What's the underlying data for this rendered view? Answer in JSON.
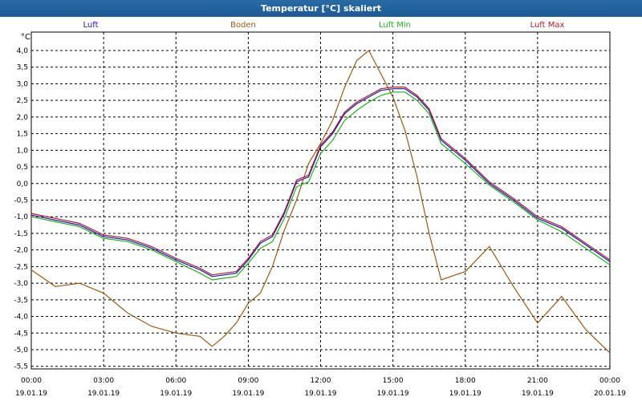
{
  "chart_data": {
    "type": "line",
    "title": "Temperatur [°C] skaliert",
    "ylabel": "°C",
    "ylim": [
      -5.5,
      4.3
    ],
    "yticks": [
      4.0,
      3.5,
      3.0,
      2.5,
      2.0,
      1.5,
      1.0,
      0.5,
      0.0,
      -0.5,
      -1.0,
      -1.5,
      -2.0,
      -2.5,
      -3.0,
      -3.5,
      -4.0,
      -4.5,
      -5.0,
      -5.5
    ],
    "ytick_labels": [
      "4,0",
      "3,5",
      "3,0",
      "2,5",
      "2,0",
      "1,5",
      "1,0",
      "0,5",
      "0,0",
      "-0,5",
      "-1,0",
      "-1,5",
      "-2,0",
      "-2,5",
      "-3,0",
      "-3,5",
      "-4,0",
      "-4,5",
      "-5,0",
      "-5,5"
    ],
    "xlim": [
      "2019-01-19T00:00",
      "2019-01-20T00:00"
    ],
    "xticks": [
      {
        "time": "00:00",
        "date": "19.01.19"
      },
      {
        "time": "03:00",
        "date": "19.01.19"
      },
      {
        "time": "06:00",
        "date": "19.01.19"
      },
      {
        "time": "09:00",
        "date": "19.01.19"
      },
      {
        "time": "12:00",
        "date": "19.01.19"
      },
      {
        "time": "15:00",
        "date": "19.01.19"
      },
      {
        "time": "18:00",
        "date": "19.01.19"
      },
      {
        "time": "21:00",
        "date": "19.01.19"
      },
      {
        "time": "00:00",
        "date": "20.01.19"
      }
    ],
    "grid": true,
    "legend_position": "top",
    "x_hours": [
      0,
      1,
      2,
      3,
      4,
      5,
      6,
      7,
      7.5,
      8,
      8.5,
      9,
      9.5,
      10,
      10.5,
      11,
      11.5,
      12,
      12.5,
      13,
      13.5,
      14,
      14.5,
      15,
      15.5,
      16,
      16.5,
      17,
      18,
      19,
      20,
      21,
      22,
      23,
      24
    ],
    "series": [
      {
        "name": "Luft",
        "color": "#1a1aaa",
        "values": [
          -0.95,
          -1.1,
          -1.25,
          -1.6,
          -1.7,
          -1.95,
          -2.3,
          -2.6,
          -2.8,
          -2.75,
          -2.7,
          -2.3,
          -1.8,
          -1.6,
          -0.9,
          0.05,
          0.2,
          1.1,
          1.5,
          2.1,
          2.4,
          2.6,
          2.8,
          2.85,
          2.85,
          2.6,
          2.2,
          1.3,
          0.7,
          0.0,
          -0.5,
          -1.05,
          -1.35,
          -1.85,
          -2.35
        ]
      },
      {
        "name": "Boden",
        "color": "#9c5a10",
        "values": [
          -2.6,
          -3.1,
          -3.0,
          -3.3,
          -3.9,
          -4.3,
          -4.5,
          -4.6,
          -4.9,
          -4.6,
          -4.2,
          -3.6,
          -3.3,
          -2.5,
          -1.4,
          -0.5,
          0.6,
          1.2,
          1.9,
          2.9,
          3.7,
          4.0,
          3.3,
          2.6,
          1.6,
          0.2,
          -1.5,
          -2.9,
          -2.65,
          -1.9,
          -3.1,
          -4.2,
          -3.4,
          -4.4,
          -5.1
        ]
      },
      {
        "name": "Luft Min",
        "color": "#1eb41e",
        "values": [
          -1.0,
          -1.15,
          -1.3,
          -1.65,
          -1.75,
          -2.0,
          -2.35,
          -2.7,
          -2.9,
          -2.85,
          -2.8,
          -2.4,
          -1.95,
          -1.75,
          -1.05,
          -0.1,
          0.05,
          0.9,
          1.3,
          1.9,
          2.2,
          2.45,
          2.65,
          2.75,
          2.75,
          2.5,
          2.1,
          1.2,
          0.6,
          -0.05,
          -0.55,
          -1.1,
          -1.45,
          -1.95,
          -2.45
        ]
      },
      {
        "name": "Luft Max",
        "color": "#b41a2a",
        "values": [
          -0.9,
          -1.05,
          -1.2,
          -1.55,
          -1.65,
          -1.9,
          -2.25,
          -2.55,
          -2.75,
          -2.7,
          -2.65,
          -2.25,
          -1.75,
          -1.55,
          -0.85,
          0.1,
          0.25,
          1.15,
          1.55,
          2.15,
          2.45,
          2.65,
          2.85,
          2.9,
          2.9,
          2.65,
          2.25,
          1.35,
          0.75,
          0.05,
          -0.45,
          -1.0,
          -1.3,
          -1.8,
          -2.3
        ]
      }
    ]
  }
}
